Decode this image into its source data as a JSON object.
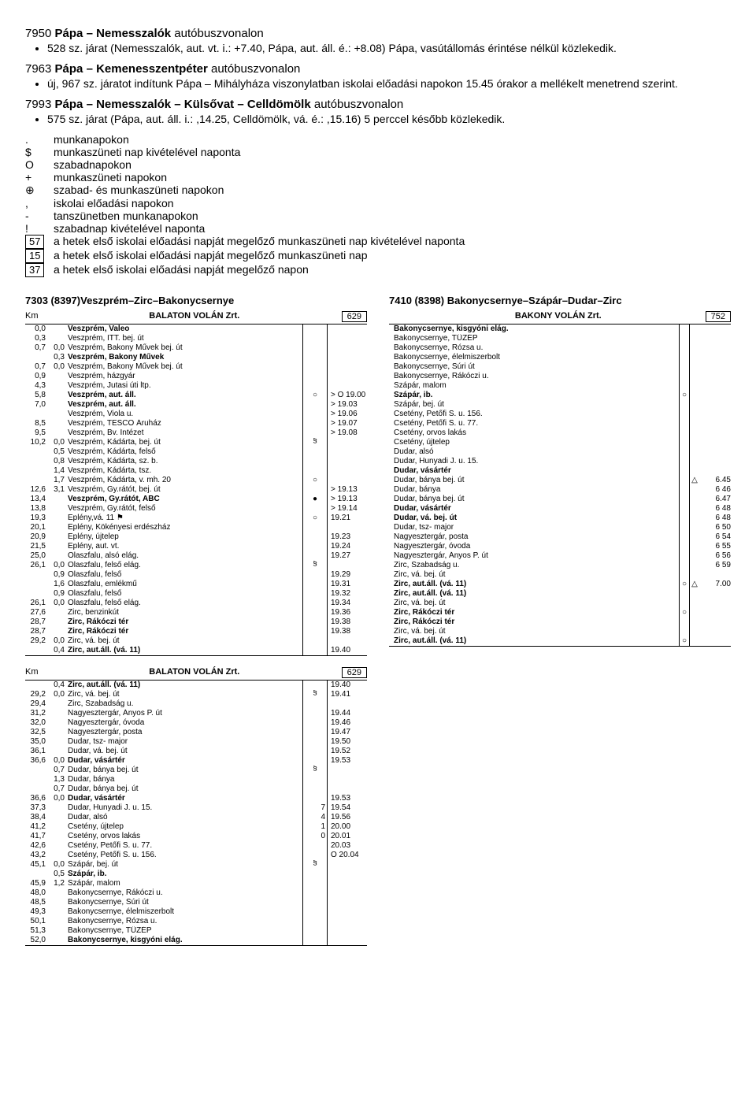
{
  "routes": [
    {
      "title_num": "7950",
      "title_name": "Pápa – Nemesszalók",
      "title_suffix": " autóbuszvonalon",
      "bullets": [
        "528 sz. járat (Nemesszalók, aut. vt. i.: +7.40, Pápa, aut. áll. é.: +8.08) Pápa, vasútállomás érintése nélkül közlekedik."
      ]
    },
    {
      "title_num": "7963",
      "title_name": "Pápa – Kemenesszentpéter",
      "title_suffix": " autóbuszvonalon",
      "bullets": [
        "új, 967 sz. járatot indítunk Pápa – Mihályháza viszonylatban iskolai előadási napokon 15.45 órakor a mellékelt menetrend szerint."
      ]
    },
    {
      "title_num": "7993",
      "title_name": "Pápa – Nemesszalók – Külsővat – Celldömölk",
      "title_suffix": " autóbuszvonalon",
      "bullets": [
        "575 sz. járat (Pápa, aut. áll. i.: ,14.25, Celldömölk, vá. é.: ,15.16) 5 perccel később közlekedik."
      ]
    }
  ],
  "legend": [
    {
      "sym": ".",
      "text": "munkanapokon"
    },
    {
      "sym": "$",
      "text": "munkaszüneti nap kivételével naponta"
    },
    {
      "sym": "O",
      "text": "szabadnapokon"
    },
    {
      "sym": "+",
      "text": "munkaszüneti napokon"
    },
    {
      "sym": "⊕",
      "text": "szabad- és munkaszüneti napokon"
    },
    {
      "sym": ",",
      "text": "iskolai előadási napokon"
    },
    {
      "sym": "-",
      "text": "tanszünetben munkanapokon"
    },
    {
      "sym": "!",
      "text": "szabadnap kivételével naponta"
    },
    {
      "sym": "57",
      "boxed": true,
      "text": "a hetek első iskolai előadási napját megelőző munkaszüneti nap kivételével naponta"
    },
    {
      "sym": "15",
      "boxed": true,
      "text": "a hetek első iskolai előadási napját megelőző munkaszüneti nap"
    },
    {
      "sym": "37",
      "boxed": true,
      "text": "a hetek első iskolai előadási napját megelőző napon"
    }
  ],
  "schedules": {
    "left": {
      "header": "7303 (8397)Veszprém–Zirc–Bakonycsernye",
      "blocks": [
        {
          "km_label": "Km",
          "company": "BALATON VOLÁN Zrt.",
          "run_num": "629",
          "rows": [
            {
              "km1": "0,0",
              "km2": "",
              "stop": "Veszprém, Valeo",
              "sep": "",
              "time": "",
              "bold": true
            },
            {
              "km1": "0,3",
              "km2": "",
              "stop": "Veszprém, ITT. bej. út",
              "sep": "",
              "time": ""
            },
            {
              "km1": "0,7",
              "km2": "0,0",
              "stop": "Veszprém, Bakony Művek bej. út",
              "sep": "",
              "time": ""
            },
            {
              "km1": "",
              "km2": "0,3",
              "stop": "Veszprém, Bakony Művek",
              "sep": "",
              "time": "",
              "bold": true
            },
            {
              "km1": "0,7",
              "km2": "0,0",
              "stop": "Veszprém, Bakony Művek bej. út",
              "sep": "",
              "time": ""
            },
            {
              "km1": "0,9",
              "km2": "",
              "stop": "Veszprém, házgyár",
              "sep": "",
              "time": ""
            },
            {
              "km1": "4,3",
              "km2": "",
              "stop": "Veszprém, Jutasi úti ltp.",
              "sep": "",
              "time": ""
            },
            {
              "km1": "5,8",
              "km2": "",
              "stop": "Veszprém, aut. áll.",
              "sep": "◦",
              "time": "O 19.00",
              "bold": true,
              "arrow": ">"
            },
            {
              "km1": "7,0",
              "km2": "",
              "stop": "Veszprém, aut. áll.",
              "sep": "",
              "time": "  19.03",
              "bold": true,
              "arrow": ">"
            },
            {
              "km1": "",
              "km2": "",
              "stop": "Veszprém, Viola u.",
              "sep": "",
              "time": "  19.06",
              "arrow": ">"
            },
            {
              "km1": "8,5",
              "km2": "",
              "stop": "Veszprém, TESCO Áruház",
              "sep": "",
              "time": "  19.07",
              "arrow": ">"
            },
            {
              "km1": "9,5",
              "km2": "",
              "stop": "Veszprém, Bv. Intézet",
              "sep": "",
              "time": "  19.08",
              "arrow": ">"
            },
            {
              "km1": "10,2",
              "km2": "0,0",
              "stop": "Veszprém, Kádárta, bej. út",
              "sep": "§",
              "time": ""
            },
            {
              "km1": "",
              "km2": "0,5",
              "stop": "Veszprém, Kádárta, felső",
              "sep": "",
              "time": ""
            },
            {
              "km1": "",
              "km2": "0,8",
              "stop": "Veszprém, Kádárta, sz. b.",
              "sep": "",
              "time": ""
            },
            {
              "km1": "",
              "km2": "1,4",
              "stop": "Veszprém, Kádárta, tsz.",
              "sep": "",
              "time": ""
            },
            {
              "km1": "",
              "km2": "1,7",
              "stop": "Veszprém, Kádárta, v. mh. 20",
              "sep": "◦",
              "time": ""
            },
            {
              "km1": "12,6",
              "km2": "3,1",
              "stop": "Veszprém, Gy.rátót, bej. út",
              "sep": "",
              "time": "  19.13",
              "arrow": ">"
            },
            {
              "km1": "13,4",
              "km2": "",
              "stop": "Veszprém, Gy.rátót, ABC",
              "sep": "•",
              "time": "  19.13",
              "bold": true,
              "arrow": ">"
            },
            {
              "km1": "13,8",
              "km2": "",
              "stop": "Veszprém, Gy.rátót, felső",
              "sep": "",
              "time": "  19.14",
              "arrow": ">"
            },
            {
              "km1": "19,3",
              "km2": "",
              "stop": "Eplény,vá. 11 ⚑",
              "sep": "◦",
              "time": "  19.21"
            },
            {
              "km1": "20,1",
              "km2": "",
              "stop": "Eplény, Kökényesi erdészház",
              "sep": "",
              "time": ""
            },
            {
              "km1": "20,9",
              "km2": "",
              "stop": "Eplény, újtelep",
              "sep": "",
              "time": "  19.23"
            },
            {
              "km1": "21,5",
              "km2": "",
              "stop": "Eplény, aut. vt.",
              "sep": "",
              "time": "  19.24"
            },
            {
              "km1": "25,0",
              "km2": "",
              "stop": "Olaszfalu, alsó elág.",
              "sep": "",
              "time": "  19.27"
            },
            {
              "km1": "26,1",
              "km2": "0,0",
              "stop": "Olaszfalu, felső elág.",
              "sep": "§",
              "time": ""
            },
            {
              "km1": "",
              "km2": "0,9",
              "stop": "Olaszfalu, felső",
              "sep": "",
              "time": "  19.29"
            },
            {
              "km1": "",
              "km2": "1,6",
              "stop": "Olaszfalu, emlékmű",
              "sep": "",
              "time": "  19.31"
            },
            {
              "km1": "",
              "km2": "0,9",
              "stop": "Olaszfalu, felső",
              "sep": "",
              "time": "  19.32"
            },
            {
              "km1": "26,1",
              "km2": "0,0",
              "stop": "Olaszfalu, felső elág.",
              "sep": "",
              "time": "  19.34"
            },
            {
              "km1": "27,6",
              "km2": "",
              "stop": "Zirc, benzinkút",
              "sep": "",
              "time": "  19.36"
            },
            {
              "km1": "28,7",
              "km2": "",
              "stop": "Zirc, Rákóczi tér",
              "sep": "",
              "time": "  19.38",
              "bold": true
            },
            {
              "km1": "28,7",
              "km2": "",
              "stop": "Zirc, Rákóczi tér",
              "sep": "",
              "time": "  19.38",
              "bold": true
            },
            {
              "km1": "29,2",
              "km2": "0,0",
              "stop": "Zirc, vá. bej. út",
              "sep": "",
              "time": ""
            },
            {
              "km1": "",
              "km2": "0,4",
              "stop": "Zirc, aut.áll. (vá. 11)",
              "sep": "",
              "time": "  19.40",
              "bold": true
            }
          ]
        },
        {
          "km_label": "Km",
          "company": "BALATON VOLÁN Zrt.",
          "run_num": "629",
          "rows": [
            {
              "km1": "",
              "km2": "0,4",
              "stop": "Zirc, aut.áll. (vá. 11)",
              "sep": "",
              "time": "  19.40",
              "bold": true
            },
            {
              "km1": "29,2",
              "km2": "0,0",
              "stop": "Zirc, vá. bej. út",
              "sep": "§",
              "time": "  19.41"
            },
            {
              "km1": "29,4",
              "km2": "",
              "stop": "Zirc, Szabadság u.",
              "sep": "",
              "time": ""
            },
            {
              "km1": "31,2",
              "km2": "",
              "stop": "Nagyesztergár, Ányos P. út",
              "sep": "",
              "time": "  19.44"
            },
            {
              "km1": "32,0",
              "km2": "",
              "stop": "Nagyesztergár, óvoda",
              "sep": "",
              "time": "  19.46"
            },
            {
              "km1": "32,5",
              "km2": "",
              "stop": "Nagyesztergár, posta",
              "sep": "",
              "time": "  19.47"
            },
            {
              "km1": "35,0",
              "km2": "",
              "stop": "Dudar, tsz- major",
              "sep": "",
              "time": "  19.50"
            },
            {
              "km1": "36,1",
              "km2": "",
              "stop": "Dudar, vá. bej. út",
              "sep": "",
              "time": "  19.52"
            },
            {
              "km1": "36,6",
              "km2": "0,0",
              "stop": "Dudar, vásártér",
              "sep": "",
              "time": "  19.53",
              "bold": true
            },
            {
              "km1": "",
              "km2": "0,7",
              "stop": "Dudar, bánya bej. út",
              "sep": "§",
              "time": ""
            },
            {
              "km1": "",
              "km2": "1,3",
              "stop": "Dudar, bánya",
              "sep": "",
              "time": ""
            },
            {
              "km1": "",
              "km2": "0,7",
              "stop": "Dudar, bánya bej. út",
              "sep": "",
              "time": ""
            },
            {
              "km1": "36,6",
              "km2": "0,0",
              "stop": "Dudar, vásártér",
              "sep": "",
              "time": "  19.53",
              "bold": true
            },
            {
              "km1": "37,3",
              "km2": "",
              "stop": "Dudar, Hunyadi J. u. 15.",
              "sep": "",
              "mark": "7",
              "time": "  19.54"
            },
            {
              "km1": "38,4",
              "km2": "",
              "stop": "Dudar, alsó",
              "sep": "",
              "mark": "4",
              "time": "  19.56"
            },
            {
              "km1": "41,2",
              "km2": "",
              "stop": "Csetény, újtelep",
              "sep": "",
              "mark": "1",
              "time": "  20.00"
            },
            {
              "km1": "41,7",
              "km2": "",
              "stop": "Csetény, orvos lakás",
              "sep": "",
              "mark": "0",
              "time": "  20.01"
            },
            {
              "km1": "42,6",
              "km2": "",
              "stop": "Csetény, Petőfi S. u. 77.",
              "sep": "",
              "time": "  20.03"
            },
            {
              "km1": "43,2",
              "km2": "",
              "stop": "Csetény, Petőfi S. u. 156.",
              "sep": "",
              "time": "O 20.04"
            },
            {
              "km1": "45,1",
              "km2": "0,0",
              "stop": "Szápár, bej. út",
              "sep": "§",
              "time": ""
            },
            {
              "km1": "",
              "km2": "0,5",
              "stop": "Szápár, ib.",
              "sep": "",
              "time": "",
              "bold": true
            },
            {
              "km1": "45,9",
              "km2": "1,2",
              "stop": "Szápár, malom",
              "sep": "",
              "time": ""
            },
            {
              "km1": "48,0",
              "km2": "",
              "stop": "Bakonycsernye, Rákóczi u.",
              "sep": "",
              "time": ""
            },
            {
              "km1": "48,5",
              "km2": "",
              "stop": "Bakonycsernye, Súri út",
              "sep": "",
              "time": ""
            },
            {
              "km1": "49,3",
              "km2": "",
              "stop": "Bakonycsernye, élelmiszerbolt",
              "sep": "",
              "time": ""
            },
            {
              "km1": "50,1",
              "km2": "",
              "stop": "Bakonycsernye, Rózsa u.",
              "sep": "",
              "time": ""
            },
            {
              "km1": "51,3",
              "km2": "",
              "stop": "Bakonycsernye, TÜZÉP",
              "sep": "",
              "time": ""
            },
            {
              "km1": "52,0",
              "km2": "",
              "stop": "Bakonycsernye, kisgyóni elág.",
              "sep": "",
              "time": "",
              "bold": true
            }
          ]
        }
      ]
    },
    "right": {
      "header": "7410 (8398) Bakonycsernye–Szápár–Dudar–Zirc",
      "company": "BAKONY VOLÁN Zrt.",
      "run_num": "752",
      "rows": [
        {
          "stop": "Bakonycsernye, kisgyóni elág.",
          "mark": "",
          "t1": "",
          "t2": "",
          "bold": true
        },
        {
          "stop": "Bakonycsernye, TÜZÉP",
          "mark": "",
          "t1": "",
          "t2": ""
        },
        {
          "stop": "Bakonycsernye, Rózsa u.",
          "mark": "",
          "t1": "",
          "t2": ""
        },
        {
          "stop": "Bakonycsernye, élelmiszerbolt",
          "mark": "",
          "t1": "",
          "t2": ""
        },
        {
          "stop": "Bakonycsernye, Súri út",
          "mark": "",
          "t1": "",
          "t2": ""
        },
        {
          "stop": "Bakonycsernye, Rákóczi u.",
          "mark": "",
          "t1": "",
          "t2": ""
        },
        {
          "stop": "  Szápár, malom",
          "mark": "",
          "t1": "",
          "t2": ""
        },
        {
          "stop": "  Szápár, ib.",
          "mark": "◦",
          "t1": "",
          "t2": "",
          "bold": true
        },
        {
          "stop": "Szápár, bej. út",
          "mark": "",
          "t1": "",
          "t2": ""
        },
        {
          "stop": "Csetény, Petőfi S. u. 156.",
          "mark": "",
          "t1": "",
          "t2": ""
        },
        {
          "stop": "Csetény, Petőfi S. u. 77.",
          "mark": "",
          "t1": "",
          "t2": ""
        },
        {
          "stop": "Csetény, orvos lakás",
          "mark": "",
          "t1": "",
          "t2": ""
        },
        {
          "stop": "Csetény, újtelep",
          "mark": "",
          "t1": "",
          "t2": ""
        },
        {
          "stop": "Dudar, alsó",
          "mark": "",
          "t1": "",
          "t2": ""
        },
        {
          "stop": "Dudar, Hunyadi J. u. 15.",
          "mark": "",
          "t1": "",
          "t2": ""
        },
        {
          "stop": "Dudar, vásártér",
          "mark": "",
          "t1": "",
          "t2": "",
          "bold": true
        },
        {
          "stop": "Dudar, bánya bej. út",
          "mark": "",
          "t1": "△",
          "t2": "6.45"
        },
        {
          "stop": "Dudar, bánya",
          "mark": "",
          "t1": "",
          "t2": "6 46"
        },
        {
          "stop": "Dudar, bánya bej. út",
          "mark": "",
          "t1": "",
          "t2": "6.47"
        },
        {
          "stop": "Dudar, vásártér",
          "mark": "",
          "t1": "",
          "t2": "6 48",
          "bold": true
        },
        {
          "stop": "Dudar, vá. bej. út",
          "mark": "",
          "t1": "",
          "t2": "6 48",
          "bold": true
        },
        {
          "stop": "Dudar, tsz- major",
          "mark": "",
          "t1": "",
          "t2": "6 50"
        },
        {
          "stop": "Nagyesztergár, posta",
          "mark": "",
          "t1": "",
          "t2": "6 54"
        },
        {
          "stop": "Nagyesztergár, óvoda",
          "mark": "",
          "t1": "",
          "t2": "6 55"
        },
        {
          "stop": "Nagyesztergár, Ányos P. út",
          "mark": "",
          "t1": "",
          "t2": "6 56"
        },
        {
          "stop": "Zirc, Szabadság u.",
          "mark": "",
          "t1": "",
          "t2": "6 59"
        },
        {
          "stop": "Zirc, vá. bej. út",
          "mark": "",
          "t1": "",
          "t2": ""
        },
        {
          "stop": "Zirc, aut.áll. (vá. 11)",
          "mark": "◦",
          "t1": "△",
          "t2": "7.00",
          "bold": true
        },
        {
          "stop": "Zirc, aut.áll. (vá. 11)",
          "mark": "",
          "t1": "",
          "t2": "",
          "bold": true
        },
        {
          "stop": "Zirc, vá. bej. út",
          "mark": "",
          "t1": "",
          "t2": ""
        },
        {
          "stop": "Zirc, Rákóczi tér",
          "mark": "◦",
          "t1": "",
          "t2": "",
          "bold": true
        },
        {
          "stop": "Zirc, Rákóczi tér",
          "mark": "",
          "t1": "",
          "t2": "",
          "bold": true
        },
        {
          "stop": "Zirc, vá. bej. út",
          "mark": "",
          "t1": "",
          "t2": ""
        },
        {
          "stop": "Zirc, aut.áll. (vá. 11)",
          "mark": "◦",
          "t1": "",
          "t2": "",
          "bold": true
        }
      ]
    }
  }
}
